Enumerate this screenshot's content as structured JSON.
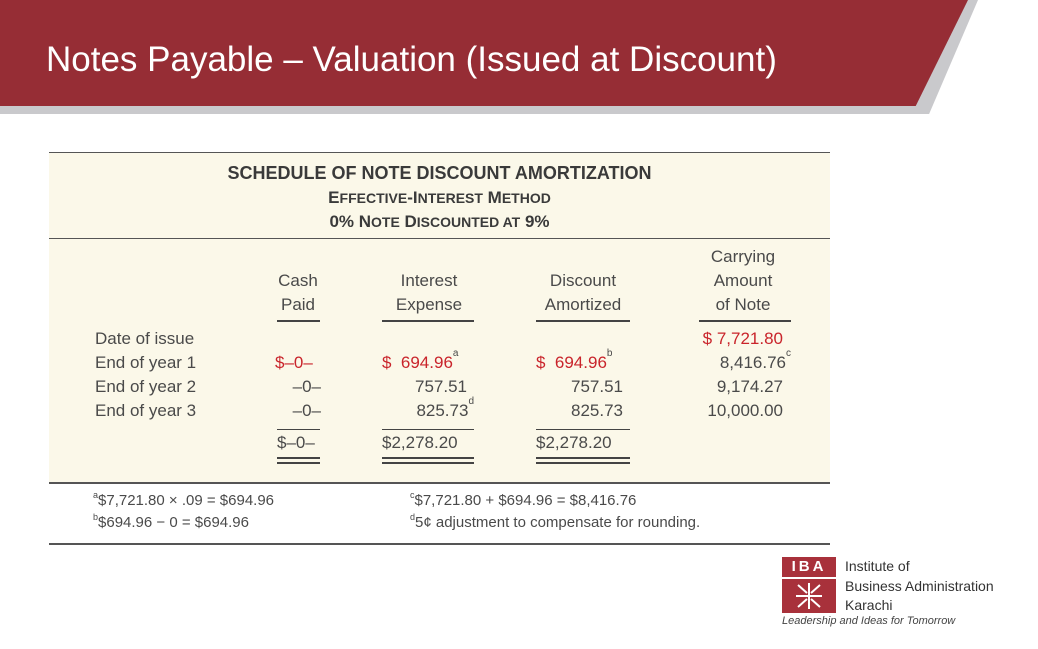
{
  "slide": {
    "title": "Notes Payable – Valuation (Issued at Discount)"
  },
  "schedule": {
    "title": "SCHEDULE OF NOTE DISCOUNT AMORTIZATION",
    "subtitle1": {
      "cap1": "E",
      "rest1": "FFECTIVE",
      "dash": "-",
      "cap2": "I",
      "rest2": "NTEREST",
      "cap3": " M",
      "rest3": "ETHOD"
    },
    "subtitle2": {
      "pre": "0% N",
      "rest1": "OTE",
      "cap2": " D",
      "rest2": "ISCOUNTED AT",
      "post": " 9%"
    },
    "columns": {
      "cash": [
        "Cash",
        "Paid"
      ],
      "interest": [
        "Interest",
        "Expense"
      ],
      "discount": [
        "Discount",
        "Amortized"
      ],
      "carrying": [
        "Carrying",
        "Amount",
        "of Note"
      ]
    },
    "rows": [
      {
        "label": "Date of issue",
        "cash": "",
        "interest": "",
        "interest_sup": "",
        "discount": "",
        "discount_sup": "",
        "carrying": "$ 7,721.80",
        "carrying_sup": ""
      },
      {
        "label": "End of year 1",
        "cash": "$–0–",
        "interest": "$  694.96",
        "interest_sup": "a",
        "discount": "$  694.96",
        "discount_sup": "b",
        "carrying": "8,416.76",
        "carrying_sup": "c"
      },
      {
        "label": "End of year 2",
        "cash": "–0–",
        "interest": "757.51",
        "interest_sup": "",
        "discount": "757.51",
        "discount_sup": "",
        "carrying": "9,174.27",
        "carrying_sup": ""
      },
      {
        "label": "End of year 3",
        "cash": "–0–",
        "interest": "825.73",
        "interest_sup": "d",
        "discount": "825.73",
        "discount_sup": "",
        "carrying": "10,000.00",
        "carrying_sup": ""
      }
    ],
    "totals": {
      "cash": "$–0–",
      "interest": "$2,278.20",
      "discount": "$2,278.20"
    }
  },
  "footnotes": [
    {
      "mark": "a",
      "text": "$7,721.80 × .09 = $694.96"
    },
    {
      "mark": "b",
      "text": "$694.96 − 0 = $694.96"
    },
    {
      "mark": "c",
      "text": "$7,721.80 + $694.96 = $8,416.76"
    },
    {
      "mark": "d",
      "text": "5¢ adjustment to compensate for rounding."
    }
  ],
  "logo": {
    "abbr": "IBA",
    "line1": "Institute of",
    "line2": "Business Administration",
    "line3": "Karachi",
    "tagline": "Leadership and Ideas for Tomorrow",
    "color": "#a8313b"
  },
  "colors": {
    "banner": "#962d35",
    "panel": "#fbf8e9",
    "highlight": "#c9242b"
  }
}
